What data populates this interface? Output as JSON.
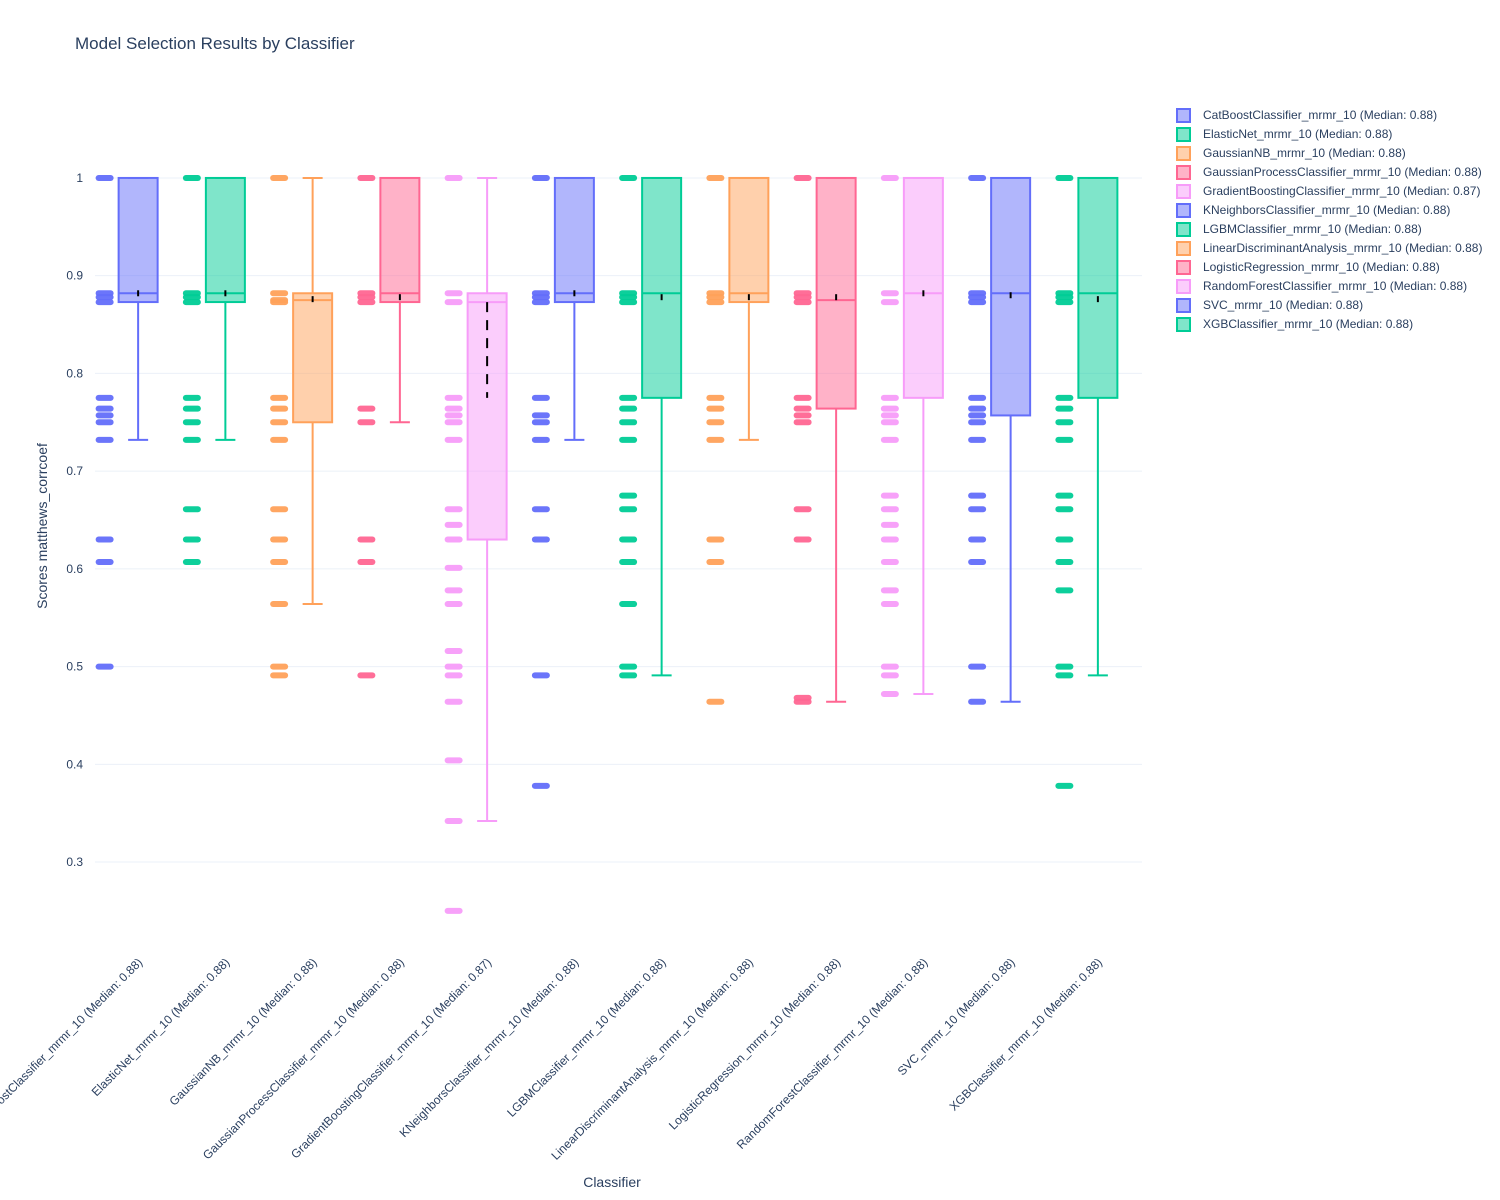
{
  "chart_data": {
    "type": "box",
    "title": "Model Selection Results by Classifier",
    "xlabel": "Classifier",
    "ylabel": "Scores matthews_corrcoef",
    "ylim": [
      0.21,
      1.09
    ],
    "yticks": [
      0.3,
      0.4,
      0.5,
      0.6,
      0.7,
      0.8,
      0.9,
      1
    ],
    "grid": true,
    "legend_position": "right",
    "series": [
      {
        "name": "CatBoostClassifier_mrmr_10 (Median: 0.88)",
        "color": "#636efa",
        "q1": 0.873,
        "median": 0.882,
        "q3": 1.0,
        "lower": 0.732,
        "upper": 1.0,
        "mean": 0.882,
        "points": [
          1.0,
          0.882,
          0.878,
          0.873,
          0.775,
          0.764,
          0.757,
          0.75,
          0.732,
          0.63,
          0.607,
          0.5
        ]
      },
      {
        "name": "ElasticNet_mrmr_10 (Median: 0.88)",
        "color": "#00cc96",
        "q1": 0.873,
        "median": 0.882,
        "q3": 1.0,
        "lower": 0.732,
        "upper": 1.0,
        "mean": 0.882,
        "points": [
          1.0,
          0.882,
          0.878,
          0.873,
          0.775,
          0.764,
          0.75,
          0.732,
          0.661,
          0.63,
          0.607
        ]
      },
      {
        "name": "GaussianNB_mrmr_10 (Median: 0.88)",
        "color": "#ffa15a",
        "q1": 0.75,
        "median": 0.875,
        "q3": 0.882,
        "lower": 0.564,
        "upper": 1.0,
        "mean": 0.876,
        "points": [
          1.0,
          0.882,
          0.875,
          0.873,
          0.775,
          0.764,
          0.75,
          0.732,
          0.661,
          0.63,
          0.607,
          0.564,
          0.5,
          0.491
        ]
      },
      {
        "name": "GaussianProcessClassifier_mrmr_10 (Median: 0.88)",
        "color": "#ff6692",
        "q1": 0.873,
        "median": 0.882,
        "q3": 1.0,
        "lower": 0.75,
        "upper": 1.0,
        "mean": 0.878,
        "points": [
          1.0,
          0.882,
          0.878,
          0.873,
          0.764,
          0.75,
          0.63,
          0.607,
          0.491
        ]
      },
      {
        "name": "GradientBoostingClassifier_mrmr_10 (Median: 0.87)",
        "color": "#f79cf9",
        "q1": 0.63,
        "median": 0.873,
        "q3": 0.882,
        "lower": 0.342,
        "upper": 1.0,
        "mean": 0.775,
        "mean_top": 0.873,
        "points": [
          1.0,
          0.882,
          0.873,
          0.775,
          0.764,
          0.757,
          0.75,
          0.732,
          0.661,
          0.645,
          0.63,
          0.601,
          0.578,
          0.564,
          0.516,
          0.5,
          0.491,
          0.464,
          0.404,
          0.342,
          0.25
        ]
      },
      {
        "name": "KNeighborsClassifier_mrmr_10 (Median: 0.88)",
        "color": "#636efa",
        "q1": 0.873,
        "median": 0.882,
        "q3": 1.0,
        "lower": 0.732,
        "upper": 1.0,
        "mean": 0.882,
        "points": [
          1.0,
          0.882,
          0.878,
          0.873,
          0.775,
          0.757,
          0.75,
          0.732,
          0.661,
          0.63,
          0.491,
          0.378
        ]
      },
      {
        "name": "LGBMClassifier_mrmr_10 (Median: 0.88)",
        "color": "#00cc96",
        "q1": 0.775,
        "median": 0.882,
        "q3": 1.0,
        "lower": 0.491,
        "upper": 1.0,
        "mean": 0.878,
        "points": [
          1.0,
          0.882,
          0.878,
          0.873,
          0.775,
          0.764,
          0.75,
          0.732,
          0.675,
          0.661,
          0.63,
          0.607,
          0.564,
          0.5,
          0.491
        ]
      },
      {
        "name": "LinearDiscriminantAnalysis_mrmr_10 (Median: 0.88)",
        "color": "#ffa15a",
        "q1": 0.873,
        "median": 0.882,
        "q3": 1.0,
        "lower": 0.732,
        "upper": 1.0,
        "mean": 0.878,
        "points": [
          1.0,
          0.882,
          0.878,
          0.873,
          0.775,
          0.764,
          0.75,
          0.732,
          0.63,
          0.607,
          0.464
        ]
      },
      {
        "name": "LogisticRegression_mrmr_10 (Median: 0.88)",
        "color": "#ff6692",
        "q1": 0.764,
        "median": 0.875,
        "q3": 1.0,
        "lower": 0.464,
        "upper": 1.0,
        "mean": 0.878,
        "points": [
          1.0,
          0.882,
          0.878,
          0.873,
          0.775,
          0.764,
          0.757,
          0.75,
          0.661,
          0.63,
          0.468,
          0.464
        ]
      },
      {
        "name": "RandomForestClassifier_mrmr_10 (Median: 0.88)",
        "color": "#f79cf9",
        "q1": 0.775,
        "median": 0.882,
        "q3": 1.0,
        "lower": 0.472,
        "upper": 1.0,
        "mean": 0.882,
        "points": [
          1.0,
          0.882,
          0.873,
          0.775,
          0.764,
          0.757,
          0.75,
          0.732,
          0.675,
          0.661,
          0.645,
          0.63,
          0.607,
          0.578,
          0.564,
          0.5,
          0.491,
          0.472
        ]
      },
      {
        "name": "SVC_mrmr_10 (Median: 0.88)",
        "color": "#636efa",
        "q1": 0.757,
        "median": 0.882,
        "q3": 1.0,
        "lower": 0.464,
        "upper": 1.0,
        "mean": 0.88,
        "points": [
          1.0,
          0.882,
          0.878,
          0.873,
          0.775,
          0.764,
          0.757,
          0.75,
          0.732,
          0.675,
          0.661,
          0.63,
          0.607,
          0.5,
          0.464
        ]
      },
      {
        "name": "XGBClassifier_mrmr_10 (Median: 0.88)",
        "color": "#00cc96",
        "q1": 0.775,
        "median": 0.882,
        "q3": 1.0,
        "lower": 0.491,
        "upper": 1.0,
        "mean": 0.876,
        "points": [
          1.0,
          0.882,
          0.878,
          0.873,
          0.775,
          0.764,
          0.75,
          0.732,
          0.675,
          0.661,
          0.63,
          0.607,
          0.578,
          0.5,
          0.491,
          0.378
        ]
      }
    ]
  }
}
